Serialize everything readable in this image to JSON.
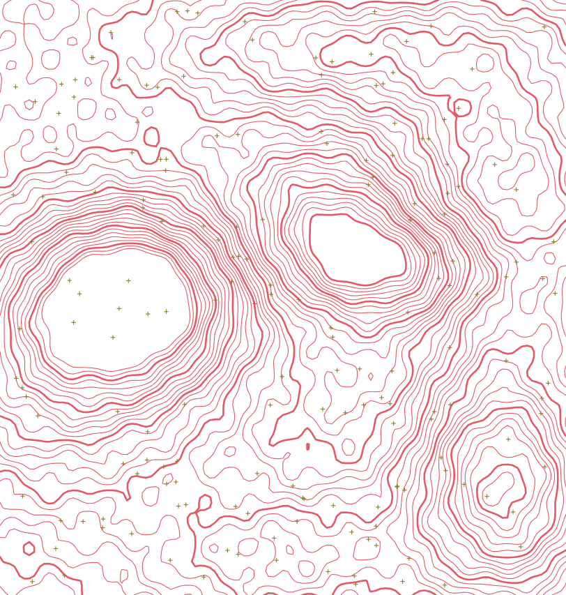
{
  "map": {
    "kind": "topographic contour map",
    "colors": {
      "background": "#ffffff",
      "contour": "#e15a66",
      "spot_marker": "#8a7a2a"
    },
    "layers": [
      "contour-lines",
      "index-contours",
      "spot-height-markers"
    ],
    "marker_symbol": "plus-icon",
    "spot_marker_count": 180
  }
}
